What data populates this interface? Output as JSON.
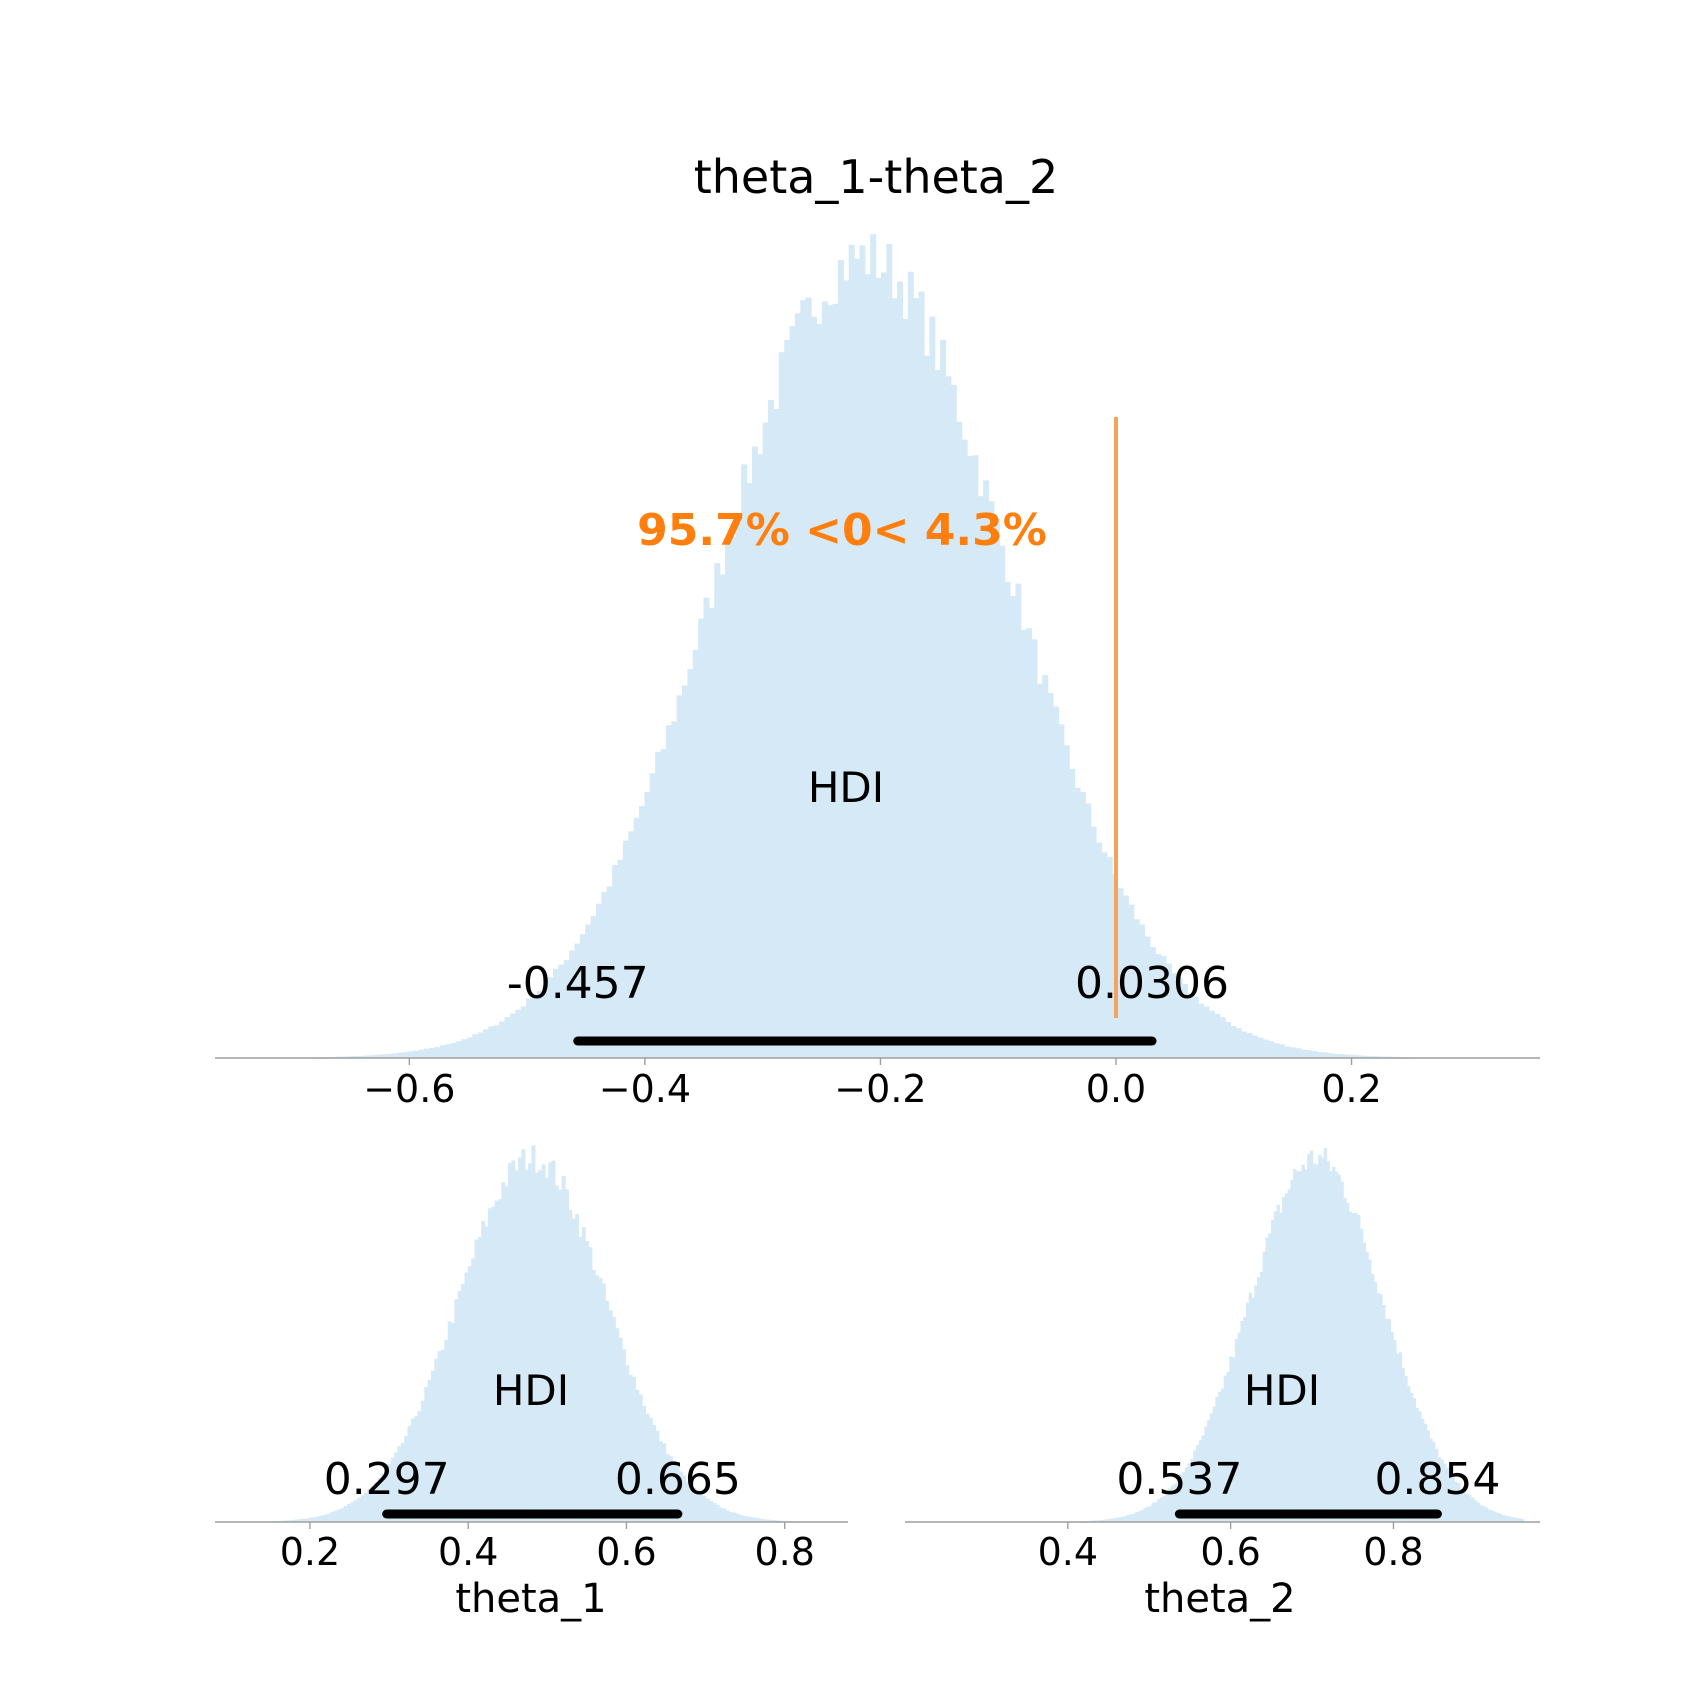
{
  "chart_data": [
    {
      "type": "histogram",
      "name": "diff",
      "title": "theta_1-theta_2",
      "xlabel": "",
      "xlim": [
        -0.765,
        0.36
      ],
      "xticks": [
        -0.6,
        -0.4,
        -0.2,
        0.0,
        0.2
      ],
      "xtick_labels": [
        "−0.6",
        "−0.4",
        "−0.2",
        "0.0",
        "0.2"
      ],
      "distribution": {
        "mean": -0.214,
        "sd": 0.124,
        "support": [
          -0.72,
          0.33
        ]
      },
      "hdi": {
        "label": "HDI",
        "low": -0.457,
        "high": 0.0306,
        "low_label": "-0.457",
        "high_label": "0.0306"
      },
      "reference": {
        "value": 0.0,
        "text": "95.7% <0< 4.3%",
        "below_pct": 95.7,
        "above_pct": 4.3
      }
    },
    {
      "type": "histogram",
      "name": "theta1",
      "title": "",
      "xlabel": "theta_1",
      "xlim": [
        0.08,
        0.88
      ],
      "xticks": [
        0.2,
        0.4,
        0.6,
        0.8
      ],
      "xtick_labels": [
        "0.2",
        "0.4",
        "0.6",
        "0.8"
      ],
      "distribution": {
        "mean": 0.481,
        "sd": 0.094,
        "support": [
          0.12,
          0.84
        ]
      },
      "hdi": {
        "label": "HDI",
        "low": 0.297,
        "high": 0.665,
        "low_label": "0.297",
        "high_label": "0.665"
      }
    },
    {
      "type": "histogram",
      "name": "theta2",
      "title": "",
      "xlabel": "theta_2",
      "xlim": [
        0.2,
        0.98
      ],
      "xticks": [
        0.4,
        0.6,
        0.8
      ],
      "xtick_labels": [
        "0.4",
        "0.6",
        "0.8"
      ],
      "distribution": {
        "mean": 0.705,
        "sd": 0.082,
        "support": [
          0.38,
          0.96
        ]
      },
      "hdi": {
        "label": "HDI",
        "low": 0.537,
        "high": 0.854,
        "low_label": "0.537",
        "high_label": "0.854"
      }
    }
  ]
}
